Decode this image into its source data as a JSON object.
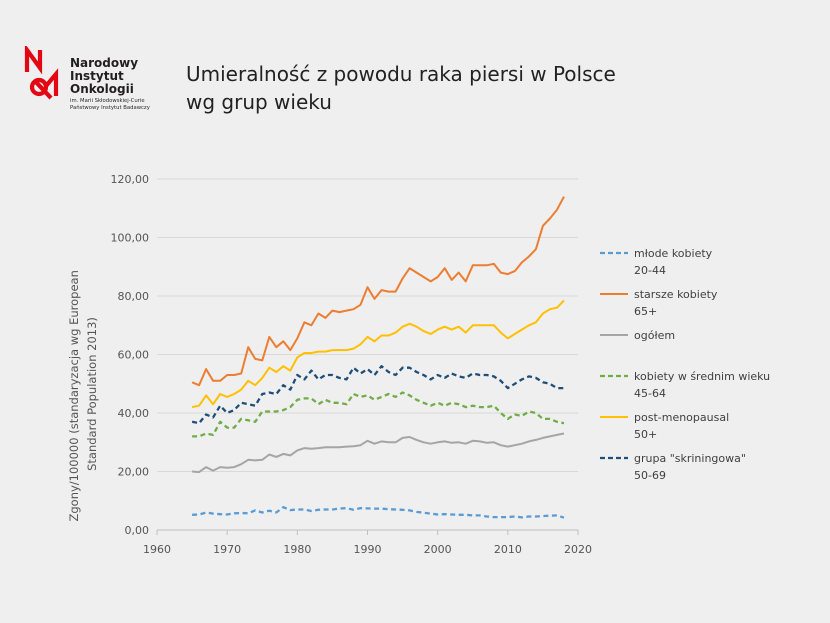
{
  "logo": {
    "name_lines": [
      "Narodowy",
      "Instytut",
      "Onkologii"
    ],
    "subtitle_lines": [
      "im. Marii Skłodowskiej-Curie",
      "Państwowy Instytut Badawczy"
    ],
    "colors": {
      "red": "#e30613"
    }
  },
  "title_lines": [
    "Umieralność z powodu raka piersi w Polsce",
    "wg grup wieku"
  ],
  "chart_data": {
    "type": "line",
    "ylabel_lines": [
      "Zgony/100000 (standaryzacja wg  European",
      "Standard Population 2013)"
    ],
    "xlabel": "",
    "xlim": [
      1960,
      2020
    ],
    "ylim": [
      0,
      120
    ],
    "x_ticks": [
      1960,
      1970,
      1980,
      1990,
      2000,
      2010,
      2020
    ],
    "y_ticks": [
      0,
      20,
      40,
      60,
      80,
      100,
      120
    ],
    "y_tick_labels": [
      "0,00",
      "20,00",
      "40,00",
      "60,00",
      "80,00",
      "100,00",
      "120,00"
    ],
    "grid": "horizontal",
    "legend_position": "right",
    "x": [
      1965,
      1966,
      1967,
      1968,
      1969,
      1970,
      1971,
      1972,
      1973,
      1974,
      1975,
      1976,
      1977,
      1978,
      1979,
      1980,
      1981,
      1982,
      1983,
      1984,
      1985,
      1986,
      1987,
      1988,
      1989,
      1990,
      1991,
      1992,
      1993,
      1994,
      1995,
      1996,
      1997,
      1998,
      1999,
      2000,
      2001,
      2002,
      2003,
      2004,
      2005,
      2006,
      2007,
      2008,
      2009,
      2010,
      2011,
      2012,
      2013,
      2014,
      2015,
      2016,
      2017,
      2018
    ],
    "series": [
      {
        "label_lines": [
          "młode kobiety",
          "20-44"
        ],
        "color": "#5b9bd5",
        "dash": "dashed",
        "values": [
          5.2,
          5.3,
          6.0,
          5.6,
          5.4,
          5.3,
          5.7,
          5.8,
          5.7,
          6.7,
          6.0,
          6.6,
          6.0,
          7.8,
          6.8,
          7.0,
          7.0,
          6.5,
          6.9,
          7.0,
          7.0,
          7.3,
          7.5,
          6.9,
          7.5,
          7.4,
          7.3,
          7.3,
          7.1,
          7.0,
          6.9,
          6.7,
          6.2,
          5.9,
          5.6,
          5.3,
          5.4,
          5.3,
          5.2,
          5.2,
          5.0,
          5.0,
          4.6,
          4.4,
          4.4,
          4.4,
          4.6,
          4.3,
          4.6,
          4.6,
          4.8,
          4.9,
          5.0,
          4.2
        ]
      },
      {
        "label_lines": [
          "starsze kobiety",
          "65+"
        ],
        "color": "#ed7d31",
        "dash": "solid",
        "values": [
          50.5,
          49.5,
          55.0,
          51.0,
          51.0,
          53.0,
          53.0,
          53.5,
          62.5,
          58.5,
          58.0,
          66.0,
          62.5,
          64.5,
          61.5,
          65.5,
          71.0,
          70.0,
          74.0,
          72.5,
          75.0,
          74.5,
          75.0,
          75.5,
          77.0,
          83.0,
          79.0,
          82.0,
          81.5,
          81.5,
          86.0,
          89.5,
          88.0,
          86.5,
          85.0,
          86.5,
          89.5,
          85.5,
          88.0,
          85.0,
          90.5,
          90.5,
          90.5,
          91.0,
          88.0,
          87.5,
          88.5,
          91.5,
          93.5,
          96.0,
          104.0,
          106.5,
          109.5,
          114.0
        ]
      },
      {
        "label_lines": [
          "ogółem"
        ],
        "color": "#a5a5a5",
        "dash": "solid",
        "values": [
          20.0,
          19.8,
          21.5,
          20.3,
          21.5,
          21.3,
          21.5,
          22.5,
          24.0,
          23.8,
          24.0,
          25.8,
          25.0,
          26.0,
          25.5,
          27.2,
          28.0,
          27.8,
          28.0,
          28.3,
          28.3,
          28.3,
          28.5,
          28.6,
          29.0,
          30.5,
          29.5,
          30.3,
          30.0,
          30.0,
          31.5,
          31.8,
          30.8,
          30.0,
          29.5,
          30.0,
          30.3,
          29.8,
          30.0,
          29.5,
          30.5,
          30.3,
          29.8,
          30.0,
          29.0,
          28.5,
          29.0,
          29.5,
          30.3,
          30.8,
          31.5,
          32.0,
          32.5,
          33.0
        ]
      },
      {
        "label_lines": [
          "kobiety w średnim wieku",
          "45-64"
        ],
        "color": "#70ad47",
        "dash": "dashed",
        "values": [
          32.0,
          32.0,
          33.0,
          32.5,
          37.0,
          35.0,
          35.0,
          38.0,
          37.5,
          37.0,
          40.5,
          40.5,
          40.5,
          41.0,
          42.0,
          44.5,
          45.0,
          45.0,
          43.0,
          44.5,
          43.5,
          43.5,
          43.0,
          46.5,
          45.5,
          46.0,
          44.5,
          45.5,
          46.5,
          45.5,
          47.0,
          46.0,
          44.5,
          43.5,
          42.5,
          43.5,
          42.5,
          43.5,
          43.0,
          42.0,
          42.5,
          42.0,
          42.0,
          42.5,
          40.0,
          38.0,
          39.5,
          39.0,
          40.5,
          40.0,
          38.0,
          38.0,
          37.0,
          36.5
        ]
      },
      {
        "label_lines": [
          "post-menopausal",
          "50+"
        ],
        "color": "#ffc000",
        "dash": "solid",
        "values": [
          42.0,
          42.5,
          46.0,
          43.0,
          46.5,
          45.5,
          46.5,
          48.0,
          51.0,
          49.5,
          52.0,
          55.5,
          54.0,
          56.0,
          54.5,
          59.0,
          60.5,
          60.5,
          61.0,
          61.0,
          61.5,
          61.5,
          61.5,
          62.0,
          63.5,
          66.0,
          64.5,
          66.5,
          66.5,
          67.5,
          69.5,
          70.5,
          69.5,
          68.0,
          67.0,
          68.5,
          69.5,
          68.5,
          69.5,
          67.5,
          70.0,
          70.0,
          70.0,
          70.0,
          67.5,
          65.5,
          67.0,
          68.5,
          70.0,
          71.0,
          74.0,
          75.5,
          76.0,
          78.5
        ]
      },
      {
        "label_lines": [
          "grupa \"skriningowa\"",
          "50-69"
        ],
        "color": "#1f4e79",
        "dash": "dashed",
        "values": [
          37.0,
          36.5,
          39.5,
          38.5,
          42.5,
          40.0,
          41.0,
          43.5,
          43.0,
          42.5,
          46.5,
          47.0,
          46.5,
          49.5,
          48.0,
          53.0,
          51.5,
          54.5,
          51.5,
          53.0,
          53.0,
          52.0,
          51.5,
          55.5,
          53.5,
          55.0,
          53.0,
          56.0,
          54.0,
          53.0,
          55.5,
          55.5,
          54.0,
          53.0,
          51.5,
          53.0,
          52.0,
          53.5,
          52.5,
          52.0,
          53.5,
          53.0,
          53.0,
          52.5,
          51.0,
          48.5,
          50.0,
          51.5,
          52.5,
          52.0,
          50.5,
          50.0,
          48.5,
          48.5
        ]
      }
    ]
  }
}
